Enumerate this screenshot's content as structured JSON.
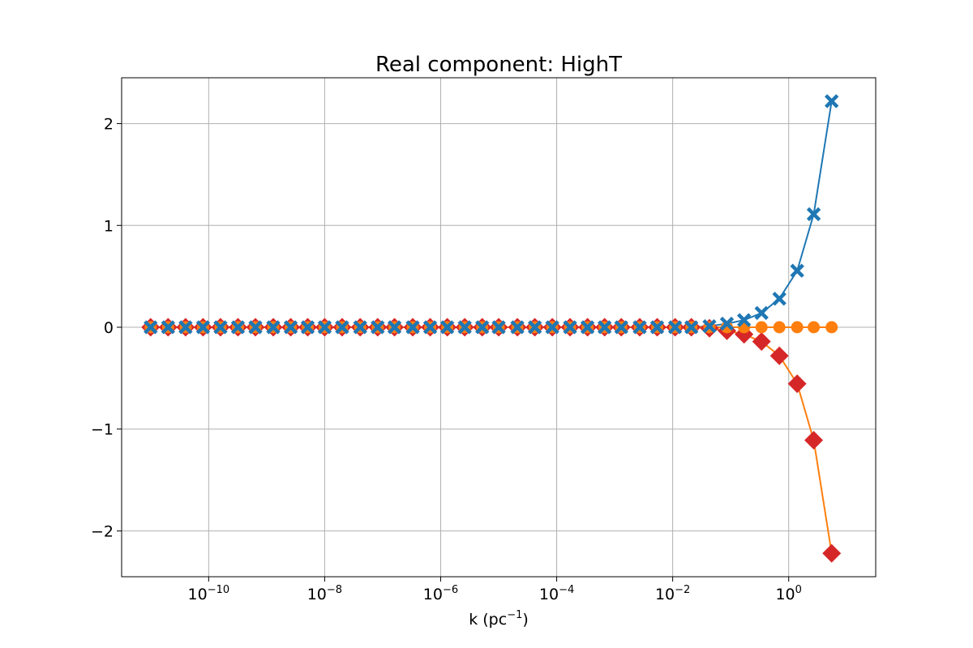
{
  "chart_data": {
    "type": "line",
    "title": "Real component: HighT",
    "xlabel": {
      "main": "k (pc",
      "sup": "−1",
      "tail": ")"
    },
    "ylabel": "",
    "xscale": "log",
    "xlim": [
      3.16e-12,
      31.6
    ],
    "ylim": [
      -2.45,
      2.45
    ],
    "grid": true,
    "legend": "none",
    "xticks": [
      {
        "value": 1e-10,
        "base": "10",
        "exp": "−10"
      },
      {
        "value": 1e-08,
        "base": "10",
        "exp": "−8"
      },
      {
        "value": 1e-06,
        "base": "10",
        "exp": "−6"
      },
      {
        "value": 0.0001,
        "base": "10",
        "exp": "−4"
      },
      {
        "value": 0.01,
        "base": "10",
        "exp": "−2"
      },
      {
        "value": 1,
        "base": "10",
        "exp": "0"
      }
    ],
    "yticks": [
      {
        "value": -2,
        "label": "−2"
      },
      {
        "value": -1,
        "label": "−1"
      },
      {
        "value": 0,
        "label": "0"
      },
      {
        "value": 1,
        "label": "1"
      },
      {
        "value": 2,
        "label": "2"
      }
    ],
    "x": [
      1e-11,
      2e-11,
      4e-11,
      8e-11,
      1.6e-10,
      3.2e-10,
      6.4e-10,
      1.3e-09,
      2.6e-09,
      5.1e-09,
      1e-08,
      2e-08,
      4.1e-08,
      8.2e-08,
      1.6e-07,
      3.3e-07,
      6.6e-07,
      1.3e-06,
      2.6e-06,
      5.2e-06,
      1e-05,
      2.1e-05,
      4.2e-05,
      8.4e-05,
      0.00017,
      0.00034,
      0.00067,
      0.0013,
      0.0027,
      0.0054,
      0.011,
      0.021,
      0.043,
      0.086,
      0.17,
      0.34,
      0.69,
      1.4,
      2.7,
      5.5
    ],
    "series": [
      {
        "color": "#1f77b4",
        "marker": "x-filled",
        "values": [
          0,
          0,
          0,
          0,
          0,
          0,
          0,
          0,
          0,
          0,
          0,
          0,
          0,
          0,
          0,
          0,
          0,
          0,
          0,
          0,
          0,
          0,
          0,
          0,
          0,
          0,
          0,
          0,
          0,
          0,
          0,
          0,
          0.01,
          0.035,
          0.07,
          0.14,
          0.28,
          0.555,
          1.11,
          2.22
        ]
      },
      {
        "color": "#ff7f0e",
        "marker": "circle",
        "values": [
          0,
          0,
          0,
          0,
          0,
          0,
          0,
          0,
          0,
          0,
          0,
          0,
          0,
          0,
          0,
          0,
          0,
          0,
          0,
          0,
          0,
          0,
          0,
          0,
          0,
          0,
          0,
          0,
          0,
          0,
          0,
          0,
          0,
          0,
          0,
          0,
          0,
          0,
          0,
          0
        ]
      },
      {
        "color": "#d62728",
        "marker": "diamond",
        "line_color": "#ff7f0e",
        "values": [
          0,
          0,
          0,
          0,
          0,
          0,
          0,
          0,
          0,
          0,
          0,
          0,
          0,
          0,
          0,
          0,
          0,
          0,
          0,
          0,
          0,
          0,
          0,
          0,
          0,
          0,
          0,
          0,
          0,
          0,
          0,
          0,
          -0.01,
          -0.035,
          -0.07,
          -0.14,
          -0.28,
          -0.555,
          -1.11,
          -2.22
        ]
      }
    ]
  }
}
